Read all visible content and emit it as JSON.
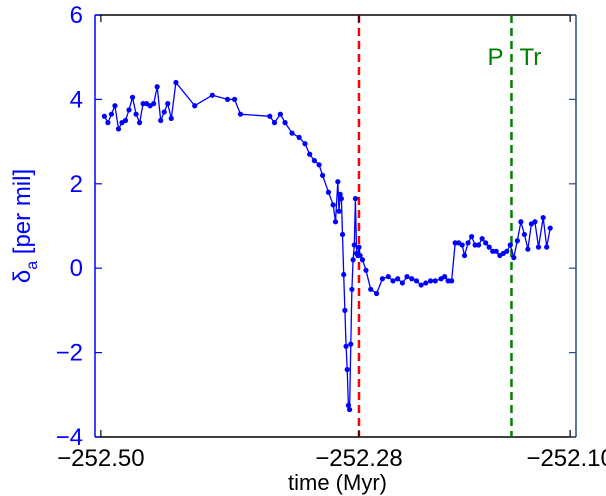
{
  "chart_data": {
    "type": "line",
    "xlabel": "time (Myr)",
    "ylabel_main": "δ",
    "ylabel_sub": "a",
    "ylabel_rest": "  [per mil]",
    "xlim": [
      -252.505,
      -252.095
    ],
    "ylim": [
      -4,
      6
    ],
    "xticks": [
      -252.5,
      -252.28,
      -252.1
    ],
    "xtick_labels": [
      "−252.50",
      "−252.28",
      "−252.10"
    ],
    "yticks": [
      -4,
      -2,
      0,
      2,
      4,
      6
    ],
    "ytick_labels": [
      "−4",
      "−2",
      "0",
      "2",
      "4",
      "6"
    ],
    "grid": false,
    "colors": {
      "series": "#0000ff",
      "left_axis": "#0000ff",
      "right_axis": "#2a4d7f",
      "frame": "#000000",
      "marker_red": "#ff0000",
      "marker_green": "#008000"
    },
    "vlines": [
      {
        "x": -252.28,
        "color": "#ff0000",
        "style": "dashed",
        "label": ""
      },
      {
        "x": -252.15,
        "color": "#008000",
        "style": "dashed",
        "label_left": "P",
        "label_right": "Tr"
      }
    ],
    "series": [
      {
        "x": [
          -252.497,
          -252.494,
          -252.491,
          -252.488,
          -252.485,
          -252.482,
          -252.479,
          -252.476,
          -252.473,
          -252.47,
          -252.467,
          -252.464,
          -252.461,
          -252.458,
          -252.455,
          -252.452,
          -252.449,
          -252.446,
          -252.443,
          -252.44,
          -252.436,
          -252.42,
          -252.405,
          -252.392,
          -252.386,
          -252.381,
          -252.356,
          -252.352,
          -252.347,
          -252.343,
          -252.337,
          -252.331,
          -252.326,
          -252.322,
          -252.318,
          -252.314,
          -252.311,
          -252.306,
          -252.302,
          -252.3,
          -252.298,
          -252.297,
          -252.296,
          -252.295,
          -252.294,
          -252.293,
          -252.292,
          -252.291,
          -252.29,
          -252.289,
          -252.288,
          -252.287,
          -252.286,
          -252.285,
          -252.284,
          -252.283,
          -252.282,
          -252.281,
          -252.28,
          -252.279,
          -252.277,
          -252.274,
          -252.27,
          -252.265,
          -252.26,
          -252.255,
          -252.251,
          -252.247,
          -252.243,
          -252.239,
          -252.235,
          -252.231,
          -252.227,
          -252.223,
          -252.219,
          -252.215,
          -252.21,
          -252.207,
          -252.204,
          -252.201,
          -252.198,
          -252.195,
          -252.192,
          -252.19,
          -252.187,
          -252.184,
          -252.181,
          -252.178,
          -252.175,
          -252.172,
          -252.169,
          -252.166,
          -252.163,
          -252.16,
          -252.157,
          -252.154,
          -252.151,
          -252.148,
          -252.145,
          -252.142,
          -252.139,
          -252.136,
          -252.133,
          -252.13,
          -252.127,
          -252.123,
          -252.12,
          -252.117
        ],
        "y": [
          3.6,
          3.45,
          3.65,
          3.85,
          3.3,
          3.45,
          3.5,
          3.75,
          4.05,
          3.65,
          3.45,
          3.9,
          3.9,
          3.85,
          3.9,
          4.3,
          3.5,
          3.7,
          3.9,
          3.55,
          4.4,
          3.85,
          4.1,
          4.0,
          4.0,
          3.65,
          3.6,
          3.45,
          3.65,
          3.45,
          3.2,
          3.1,
          2.95,
          2.7,
          2.55,
          2.45,
          2.2,
          1.8,
          1.5,
          1.1,
          2.05,
          1.35,
          1.75,
          1.65,
          0.8,
          -0.15,
          -1.0,
          -1.85,
          -2.4,
          -3.25,
          -3.35,
          -1.8,
          -0.5,
          0.2,
          0.55,
          1.65,
          0.35,
          0.3,
          0.5,
          0.3,
          0.2,
          -0.05,
          -0.5,
          -0.6,
          -0.25,
          -0.2,
          -0.3,
          -0.25,
          -0.35,
          -0.2,
          -0.25,
          -0.3,
          -0.4,
          -0.35,
          -0.3,
          -0.3,
          -0.25,
          -0.2,
          -0.3,
          -0.3,
          0.6,
          0.6,
          0.55,
          0.3,
          0.6,
          0.75,
          0.55,
          0.55,
          0.7,
          0.6,
          0.5,
          0.4,
          0.4,
          0.3,
          0.35,
          0.4,
          0.55,
          0.25,
          0.65,
          1.1,
          0.8,
          0.45,
          1.05,
          1.1,
          0.5,
          1.2,
          0.5,
          0.95
        ]
      }
    ]
  }
}
